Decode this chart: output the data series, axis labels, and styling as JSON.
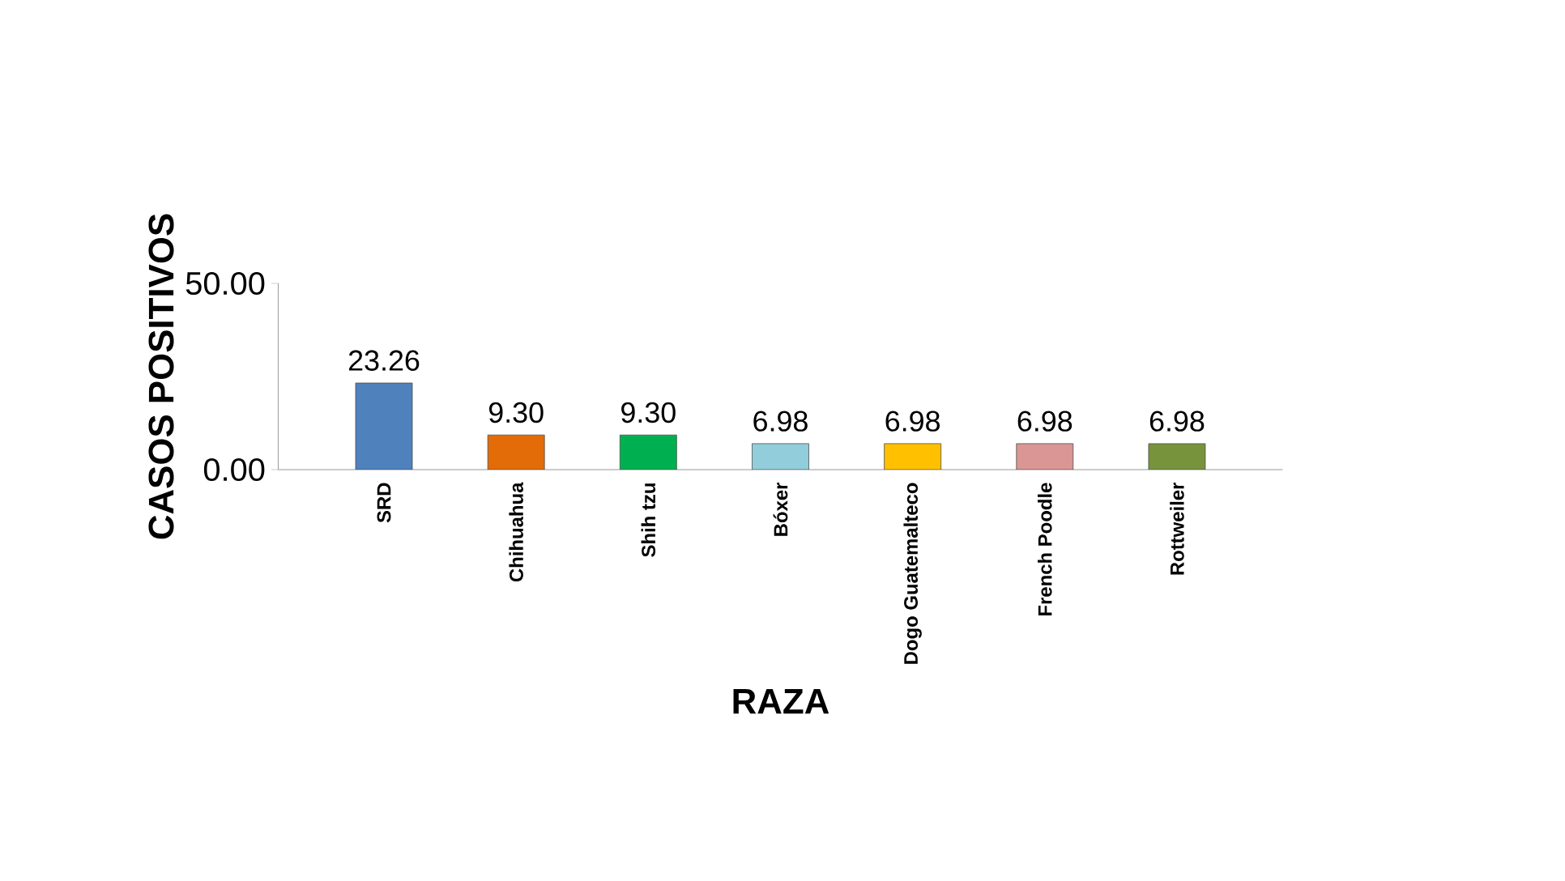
{
  "chart_data": {
    "type": "bar",
    "xlabel": "RAZA",
    "ylabel": "CASOS POSITIVOS",
    "categories": [
      "SRD",
      "Chihuahua",
      "Shih tzu",
      "Bóxer",
      "Dogo Guatemalteco",
      "French Poodle",
      "Rottweiler"
    ],
    "values": [
      23.26,
      9.3,
      9.3,
      6.98,
      6.98,
      6.98,
      6.98
    ],
    "value_labels": [
      "23.26",
      "9.30",
      "9.30",
      "6.98",
      "6.98",
      "6.98",
      "6.98"
    ],
    "colors": [
      "#4f81bd",
      "#e36c09",
      "#00b050",
      "#92cddc",
      "#ffc000",
      "#d99694",
      "#77933c"
    ],
    "ylim": [
      0,
      50
    ],
    "yticks": [
      {
        "value": 0,
        "label": "0.00"
      },
      {
        "value": 50,
        "label": "50.00"
      }
    ],
    "grid": false
  }
}
